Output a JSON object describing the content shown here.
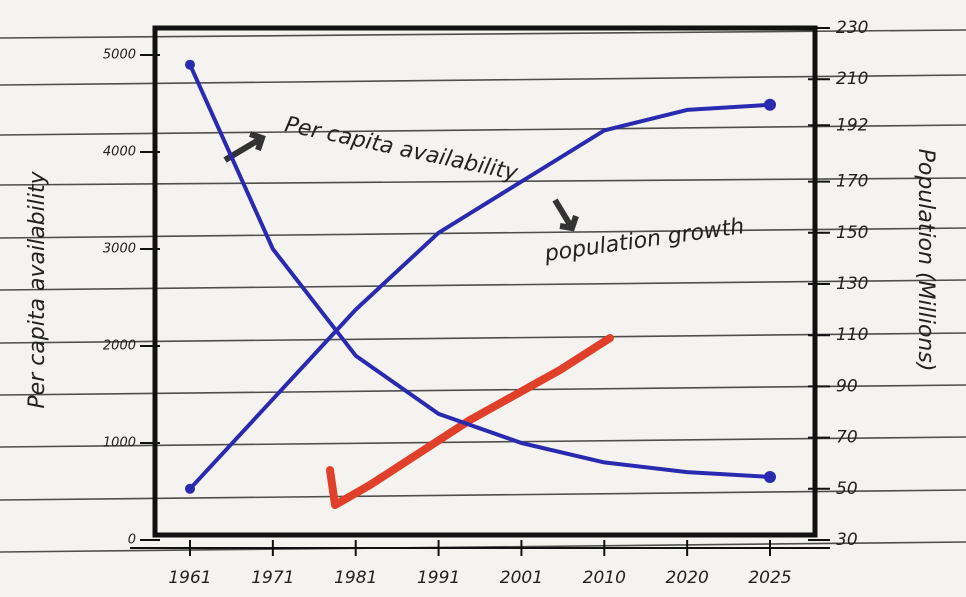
{
  "chart_data": {
    "type": "line",
    "y_label": "Per capita availability",
    "y2_label": "Population (Millions)",
    "annotations": [
      "Per capita availability",
      "population growth"
    ],
    "categories": [
      "1961",
      "1971",
      "1981",
      "1991",
      "2001",
      "2010",
      "2020",
      "2025"
    ],
    "series": [
      {
        "name": "Per capita availability",
        "color": "#2a2ab0",
        "values": [
          4900,
          3000,
          1900,
          1300,
          1000,
          800,
          700,
          650
        ]
      },
      {
        "name": "population growth",
        "color": "#2a2ab0",
        "axis": "y2",
        "values": [
          50,
          85,
          120,
          150,
          170,
          190,
          198,
          200
        ]
      }
    ],
    "ylim": [
      0,
      5000
    ],
    "yticks": [
      0,
      1000,
      2000,
      3000,
      4000,
      5000
    ],
    "y2lim": [
      30,
      230
    ],
    "y2ticks": [
      30,
      50,
      70,
      90,
      110,
      130,
      150,
      170,
      192,
      210,
      230
    ]
  }
}
